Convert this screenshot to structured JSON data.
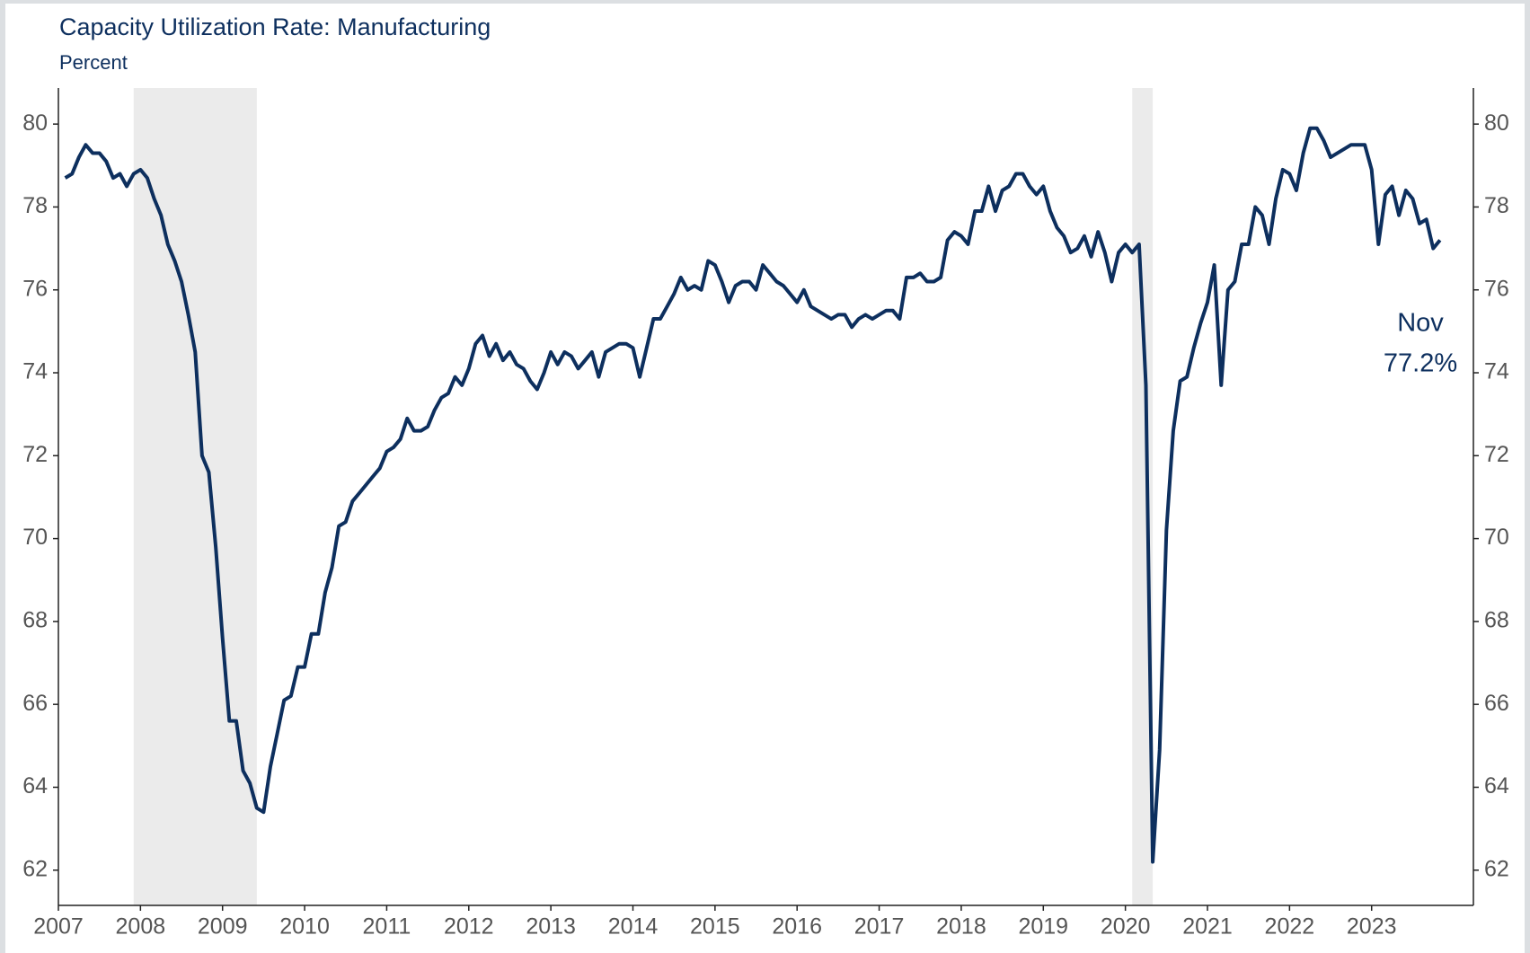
{
  "chart_data": {
    "type": "line",
    "title": "Capacity Utilization Rate: Manufacturing",
    "subtitle": "Percent",
    "annotation": [
      "Nov",
      "77.2%"
    ],
    "color": "#0d2f5e",
    "recession_color": "#ebebeb",
    "recessions": [
      [
        2007.917,
        2009.417
      ],
      [
        2020.083,
        2020.333
      ]
    ],
    "xlim": [
      2007,
      2024.24
    ],
    "xticks": [
      2007,
      2008,
      2009,
      2010,
      2011,
      2012,
      2013,
      2014,
      2015,
      2016,
      2017,
      2018,
      2019,
      2020,
      2021,
      2022,
      2023
    ],
    "ylim": [
      61.15,
      80.87
    ],
    "yticks": [
      62,
      64,
      66,
      68,
      70,
      72,
      74,
      76,
      78,
      80
    ],
    "x": [
      2007.083,
      2007.167,
      2007.25,
      2007.333,
      2007.417,
      2007.5,
      2007.583,
      2007.667,
      2007.75,
      2007.833,
      2007.917,
      2008,
      2008.083,
      2008.167,
      2008.25,
      2008.333,
      2008.417,
      2008.5,
      2008.583,
      2008.667,
      2008.75,
      2008.833,
      2008.917,
      2009,
      2009.083,
      2009.167,
      2009.25,
      2009.333,
      2009.417,
      2009.5,
      2009.583,
      2009.667,
      2009.75,
      2009.833,
      2009.917,
      2010,
      2010.083,
      2010.167,
      2010.25,
      2010.333,
      2010.417,
      2010.5,
      2010.583,
      2010.667,
      2010.75,
      2010.833,
      2010.917,
      2011,
      2011.083,
      2011.167,
      2011.25,
      2011.333,
      2011.417,
      2011.5,
      2011.583,
      2011.667,
      2011.75,
      2011.833,
      2011.917,
      2012,
      2012.083,
      2012.167,
      2012.25,
      2012.333,
      2012.417,
      2012.5,
      2012.583,
      2012.667,
      2012.75,
      2012.833,
      2012.917,
      2013,
      2013.083,
      2013.167,
      2013.25,
      2013.333,
      2013.417,
      2013.5,
      2013.583,
      2013.667,
      2013.75,
      2013.833,
      2013.917,
      2014,
      2014.083,
      2014.167,
      2014.25,
      2014.333,
      2014.417,
      2014.5,
      2014.583,
      2014.667,
      2014.75,
      2014.833,
      2014.917,
      2015,
      2015.083,
      2015.167,
      2015.25,
      2015.333,
      2015.417,
      2015.5,
      2015.583,
      2015.667,
      2015.75,
      2015.833,
      2015.917,
      2016,
      2016.083,
      2016.167,
      2016.25,
      2016.333,
      2016.417,
      2016.5,
      2016.583,
      2016.667,
      2016.75,
      2016.833,
      2016.917,
      2017,
      2017.083,
      2017.167,
      2017.25,
      2017.333,
      2017.417,
      2017.5,
      2017.583,
      2017.667,
      2017.75,
      2017.833,
      2017.917,
      2018,
      2018.083,
      2018.167,
      2018.25,
      2018.333,
      2018.417,
      2018.5,
      2018.583,
      2018.667,
      2018.75,
      2018.833,
      2018.917,
      2019,
      2019.083,
      2019.167,
      2019.25,
      2019.333,
      2019.417,
      2019.5,
      2019.583,
      2019.667,
      2019.75,
      2019.833,
      2019.917,
      2020,
      2020.083,
      2020.167,
      2020.25,
      2020.333,
      2020.417,
      2020.5,
      2020.583,
      2020.667,
      2020.75,
      2020.833,
      2020.917,
      2021,
      2021.083,
      2021.167,
      2021.25,
      2021.333,
      2021.417,
      2021.5,
      2021.583,
      2021.667,
      2021.75,
      2021.833,
      2021.917,
      2022,
      2022.083,
      2022.167,
      2022.25,
      2022.333,
      2022.417,
      2022.5,
      2022.583,
      2022.667,
      2022.75,
      2022.833,
      2022.917,
      2023,
      2023.083,
      2023.167,
      2023.25,
      2023.333,
      2023.417,
      2023.5,
      2023.583,
      2023.667,
      2023.75,
      2023.833
    ],
    "values": [
      78.7,
      78.8,
      79.2,
      79.5,
      79.3,
      79.3,
      79.1,
      78.7,
      78.8,
      78.5,
      78.8,
      78.9,
      78.7,
      78.2,
      77.8,
      77.1,
      76.7,
      76.2,
      75.4,
      74.5,
      72.0,
      71.6,
      69.8,
      67.6,
      65.6,
      65.6,
      64.4,
      64.1,
      63.5,
      63.4,
      64.5,
      65.3,
      66.1,
      66.2,
      66.9,
      66.9,
      67.7,
      67.7,
      68.7,
      69.3,
      70.3,
      70.4,
      70.9,
      71.1,
      71.3,
      71.5,
      71.7,
      72.1,
      72.2,
      72.4,
      72.9,
      72.6,
      72.6,
      72.7,
      73.1,
      73.4,
      73.5,
      73.9,
      73.7,
      74.1,
      74.7,
      74.9,
      74.4,
      74.7,
      74.3,
      74.5,
      74.2,
      74.1,
      73.8,
      73.6,
      74.0,
      74.5,
      74.2,
      74.5,
      74.4,
      74.1,
      74.3,
      74.5,
      73.9,
      74.5,
      74.6,
      74.7,
      74.7,
      74.6,
      73.9,
      74.6,
      75.3,
      75.3,
      75.6,
      75.9,
      76.3,
      76.0,
      76.1,
      76.0,
      76.7,
      76.6,
      76.2,
      75.7,
      76.1,
      76.2,
      76.2,
      76.0,
      76.6,
      76.4,
      76.2,
      76.1,
      75.9,
      75.7,
      76.0,
      75.6,
      75.5,
      75.4,
      75.3,
      75.4,
      75.4,
      75.1,
      75.3,
      75.4,
      75.3,
      75.4,
      75.5,
      75.5,
      75.3,
      76.3,
      76.3,
      76.4,
      76.2,
      76.2,
      76.3,
      77.2,
      77.4,
      77.3,
      77.1,
      77.9,
      77.9,
      78.5,
      77.9,
      78.4,
      78.5,
      78.8,
      78.8,
      78.5,
      78.3,
      78.5,
      77.9,
      77.5,
      77.3,
      76.9,
      77.0,
      77.3,
      76.8,
      77.4,
      76.9,
      76.2,
      76.9,
      77.1,
      76.9,
      77.1,
      73.7,
      62.2,
      64.9,
      70.2,
      72.6,
      73.8,
      73.9,
      74.6,
      75.2,
      75.7,
      76.6,
      73.7,
      76.0,
      76.2,
      77.1,
      77.1,
      78.0,
      77.8,
      77.1,
      78.2,
      78.9,
      78.8,
      78.4,
      79.3,
      79.9,
      79.9,
      79.6,
      79.2,
      79.3,
      79.4,
      79.5,
      79.5,
      79.5,
      78.9,
      77.1,
      78.3,
      78.5,
      77.8,
      78.4,
      78.2,
      77.6,
      77.7,
      77.0,
      77.2
    ]
  }
}
